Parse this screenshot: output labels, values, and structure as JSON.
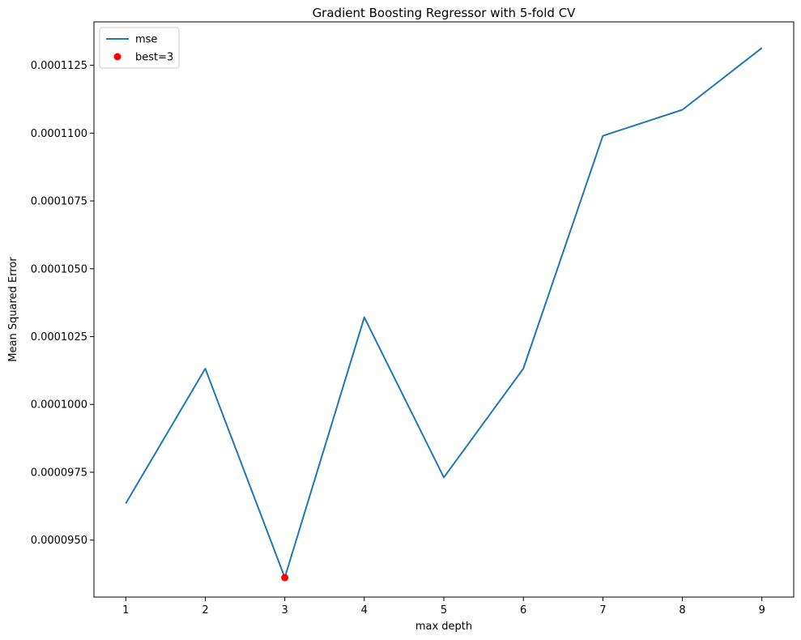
{
  "chart_data": {
    "type": "line",
    "title": "Gradient Boosting Regressor with 5-fold CV",
    "xlabel": "max depth",
    "ylabel": "Mean Squared Error",
    "x": [
      1,
      2,
      3,
      4,
      5,
      6,
      7,
      8,
      9
    ],
    "series": [
      {
        "name": "mse",
        "color": "#1f77b4",
        "values": [
          9.635e-05,
          0.00010132,
          9.362e-05,
          0.00010321,
          9.731e-05,
          0.00010132,
          0.0001099,
          0.00011086,
          0.00011314
        ]
      }
    ],
    "best_point": {
      "label": "best=3",
      "x": 3,
      "y": 9.362e-05,
      "color": "#ff0000"
    },
    "xlim": [
      0.6,
      9.4
    ],
    "ylim": [
      9.29e-05,
      0.0001141
    ],
    "xticks": [
      1,
      2,
      3,
      4,
      5,
      6,
      7,
      8,
      9
    ],
    "yticks": [
      9.5e-05,
      9.75e-05,
      0.0001,
      0.0001025,
      0.000105,
      0.0001075,
      0.00011,
      0.0001125
    ],
    "ytick_labels": [
      "0.0000950",
      "0.0000975",
      "0.0001000",
      "0.0001025",
      "0.0001050",
      "0.0001075",
      "0.0001100",
      "0.0001125"
    ],
    "legend_position": "upper-left",
    "grid": false
  }
}
